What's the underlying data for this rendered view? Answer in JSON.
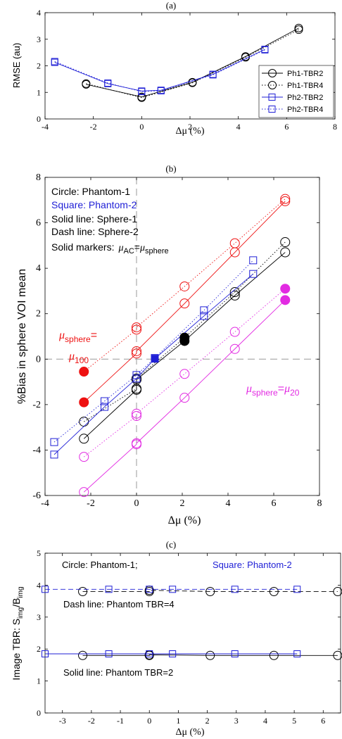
{
  "chart_data": [
    {
      "type": "line",
      "panel_label": "(a)",
      "xlabel_symbol": "Δμ",
      "xlabel_unit": " (%)",
      "ylabel": "RMSE (au)",
      "xlim": [
        -4,
        8
      ],
      "ylim": [
        0,
        4
      ],
      "xticks": [
        -4,
        -2,
        0,
        2,
        4,
        6,
        8
      ],
      "yticks": [
        0,
        1,
        2,
        3,
        4
      ],
      "legend_position": "bottom-right",
      "series": [
        {
          "name": "Ph1-TBR2",
          "color": "#000000",
          "marker": "circle",
          "dash": "solid",
          "x": [
            -2.3,
            0,
            2.1,
            4.3,
            6.5
          ],
          "y": [
            1.3,
            0.83,
            1.38,
            2.35,
            3.42
          ]
        },
        {
          "name": "Ph1-TBR4",
          "color": "#000000",
          "marker": "circle",
          "dash": "dotted",
          "x": [
            -2.3,
            0,
            2.1,
            4.3,
            6.5
          ],
          "y": [
            1.33,
            0.8,
            1.36,
            2.32,
            3.36
          ]
        },
        {
          "name": "Ph2-TBR2",
          "color": "#1f1fd6",
          "marker": "square",
          "dash": "solid",
          "x": [
            -3.6,
            -1.4,
            0,
            0.8,
            2.95,
            5.1
          ],
          "y": [
            2.13,
            1.33,
            1.05,
            1.08,
            1.68,
            2.62
          ]
        },
        {
          "name": "Ph2-TBR4",
          "color": "#1f1fd6",
          "marker": "square",
          "dash": "dotted",
          "x": [
            -3.6,
            -1.4,
            0,
            0.8,
            2.95,
            5.1
          ],
          "y": [
            2.16,
            1.35,
            1.03,
            1.06,
            1.66,
            2.6
          ]
        }
      ]
    },
    {
      "type": "line",
      "panel_label": "(b)",
      "xlabel_symbol": "Δμ",
      "xlabel_unit": " (%)",
      "ylabel": "%Bias in sphere VOI mean",
      "xlim": [
        -4,
        8
      ],
      "ylim": [
        -6,
        8
      ],
      "xticks": [
        -4,
        -2,
        0,
        2,
        4,
        6,
        8
      ],
      "yticks": [
        -6,
        -4,
        -2,
        0,
        2,
        4,
        6,
        8
      ],
      "grid": false,
      "series": [
        {
          "color": "#000000",
          "marker": "circle",
          "dash": "solid",
          "x": [
            -2.3,
            0,
            0,
            2.1,
            4.3,
            6.5
          ],
          "y": [
            -3.5,
            -1.35,
            -0.9,
            0.8,
            2.8,
            4.7
          ]
        },
        {
          "color": "#000000",
          "marker": "circle",
          "dash": "dotted",
          "x": [
            -2.3,
            0,
            0,
            2.1,
            4.3,
            6.5
          ],
          "y": [
            -2.75,
            -1.3,
            -0.85,
            0.95,
            2.95,
            5.15
          ]
        },
        {
          "color": "#1f1fd6",
          "marker": "square",
          "dash": "solid",
          "x": [
            -3.6,
            -1.4,
            0,
            0.8,
            2.95,
            5.1
          ],
          "y": [
            -4.2,
            -2.1,
            -0.85,
            0.02,
            1.9,
            3.75
          ]
        },
        {
          "color": "#1f1fd6",
          "marker": "square",
          "dash": "dotted",
          "x": [
            -3.6,
            -1.4,
            0,
            0.8,
            2.95,
            5.1
          ],
          "y": [
            -3.65,
            -1.85,
            -0.7,
            0.05,
            2.15,
            4.35
          ]
        },
        {
          "color": "#ee1111",
          "marker": "circle",
          "dash": "solid",
          "x": [
            -2.3,
            0,
            0,
            2.1,
            4.3,
            6.5
          ],
          "y": [
            -1.9,
            0.25,
            0.35,
            2.45,
            4.7,
            6.95
          ]
        },
        {
          "color": "#ee1111",
          "marker": "circle",
          "dash": "dotted",
          "x": [
            -2.3,
            0,
            0,
            2.1,
            4.3,
            6.5
          ],
          "y": [
            -0.55,
            1.3,
            1.4,
            3.2,
            5.1,
            7.05
          ]
        },
        {
          "color": "#e22ae2",
          "marker": "circle",
          "dash": "solid",
          "x": [
            -2.3,
            0,
            0,
            2.1,
            4.3,
            6.5
          ],
          "y": [
            -5.85,
            -3.75,
            -3.7,
            -1.7,
            0.45,
            2.6
          ]
        },
        {
          "color": "#e22ae2",
          "marker": "circle",
          "dash": "dotted",
          "x": [
            -2.3,
            0,
            0,
            2.1,
            4.3,
            6.5
          ],
          "y": [
            -4.3,
            -2.5,
            -2.4,
            -0.65,
            1.2,
            3.1
          ]
        }
      ],
      "solid_markers": [
        {
          "x": 2.1,
          "y": 0.8,
          "color": "#000000",
          "shape": "circle"
        },
        {
          "x": 2.1,
          "y": 0.95,
          "color": "#000000",
          "shape": "circle"
        },
        {
          "x": 0.8,
          "y": 0.02,
          "color": "#1f1fd6",
          "shape": "square"
        },
        {
          "x": -2.3,
          "y": -1.9,
          "color": "#ee1111",
          "shape": "circle"
        },
        {
          "x": -2.3,
          "y": -0.55,
          "color": "#ee1111",
          "shape": "circle"
        },
        {
          "x": 6.5,
          "y": 2.6,
          "color": "#e22ae2",
          "shape": "circle"
        },
        {
          "x": 6.5,
          "y": 3.1,
          "color": "#e22ae2",
          "shape": "circle"
        }
      ],
      "reference_lines": {
        "x": 0,
        "y": 0
      }
    },
    {
      "type": "line",
      "panel_label": "(c)",
      "xlabel_symbol": "Δμ",
      "xlabel_unit": " (%)",
      "ylabel_main": "Image TBR: S",
      "ylabel_sub1": "img",
      "ylabel_mid": "/B",
      "ylabel_sub2": "img",
      "xlim": [
        -3.6,
        6.6
      ],
      "ylim": [
        0,
        5
      ],
      "xticks": [
        -3,
        -2,
        -1,
        0,
        1,
        2,
        3,
        4,
        5,
        6
      ],
      "yticks": [
        0,
        1,
        2,
        3,
        4,
        5
      ],
      "series": [
        {
          "color": "#000000",
          "marker": "circle",
          "dash": "dashed",
          "x": [
            -2.3,
            0,
            0,
            2.1,
            4.3,
            6.5
          ],
          "y": [
            3.8,
            3.8,
            3.84,
            3.8,
            3.8,
            3.8
          ]
        },
        {
          "color": "#1f1fd6",
          "marker": "square",
          "dash": "dashed",
          "x": [
            -3.6,
            -1.4,
            0,
            0.8,
            2.95,
            5.1
          ],
          "y": [
            3.87,
            3.87,
            3.87,
            3.87,
            3.87,
            3.87
          ]
        },
        {
          "color": "#000000",
          "marker": "circle",
          "dash": "solid",
          "x": [
            -2.3,
            0,
            0,
            2.1,
            4.3,
            6.5
          ],
          "y": [
            1.8,
            1.8,
            1.82,
            1.8,
            1.8,
            1.8
          ]
        },
        {
          "color": "#1f1fd6",
          "marker": "square",
          "dash": "solid",
          "x": [
            -3.6,
            -1.4,
            0,
            0.8,
            2.95,
            5.1
          ],
          "y": [
            1.85,
            1.85,
            1.85,
            1.85,
            1.85,
            1.85
          ]
        }
      ]
    }
  ],
  "annotations_b": {
    "circle_label": "Circle: Phantom-1",
    "square_label": "Square: Phantom-2",
    "solid_line_label": "Solid line: Sphere-1",
    "dash_line_label": "Dash line: Sphere-2",
    "solid_markers_prefix": "Solid markers:",
    "mu": "μ",
    "sub_ac": "AC",
    "equals": "=",
    "sub_sphere": "sphere",
    "sub_100": "100",
    "sub_20": "20"
  },
  "annotations_c": {
    "circle_label": "Circle: Phantom-1;",
    "square_label": "Square: Phantom-2",
    "dash_label": "Dash line: Phantom TBR=4",
    "solid_label": "Solid line: Phantom TBR=2"
  }
}
